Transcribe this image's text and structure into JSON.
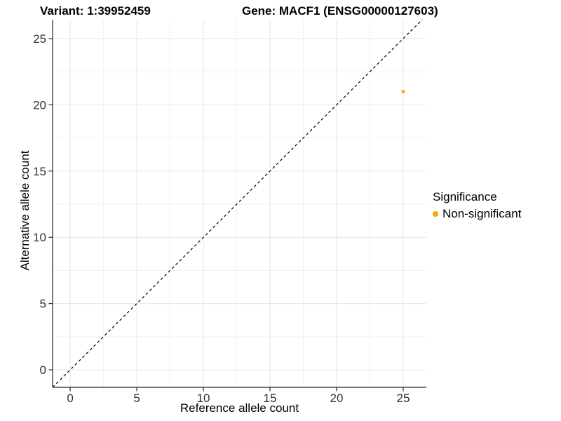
{
  "title": {
    "variant": "Variant: 1:39952459",
    "gene": "Gene: MACF1 (ENSG00000127603)"
  },
  "chart_data": {
    "type": "scatter",
    "title": "Variant: 1:39952459    Gene: MACF1 (ENSG00000127603)",
    "xlabel": "Reference allele count",
    "ylabel": "Alternative allele count",
    "xlim": [
      -1.32,
      26.74
    ],
    "ylim": [
      -1.32,
      26.43
    ],
    "x_major_ticks": [
      0,
      5,
      10,
      15,
      20,
      25
    ],
    "y_major_ticks": [
      0,
      5,
      10,
      15,
      20,
      25
    ],
    "x_minor_ticks": [
      2.5,
      7.5,
      12.5,
      17.5,
      22.5
    ],
    "y_minor_ticks": [
      2.5,
      7.5,
      12.5,
      17.5,
      22.5
    ],
    "grid": true,
    "grid_major_color": "#e6e6e6",
    "grid_minor_color": "#f2f2f2",
    "axis_line_color": "#262626",
    "tick_label_color": "#333333",
    "reference_line": {
      "type": "identity",
      "style": "dashed",
      "color": "#000000"
    },
    "series": [
      {
        "name": "Non-significant",
        "color": "#FFA500",
        "points": [
          {
            "x": 25,
            "y": 21
          }
        ]
      }
    ],
    "legend": {
      "title": "Significance",
      "position": "right",
      "items": [
        {
          "label": "Non-significant",
          "color": "#FFA500"
        }
      ]
    }
  }
}
